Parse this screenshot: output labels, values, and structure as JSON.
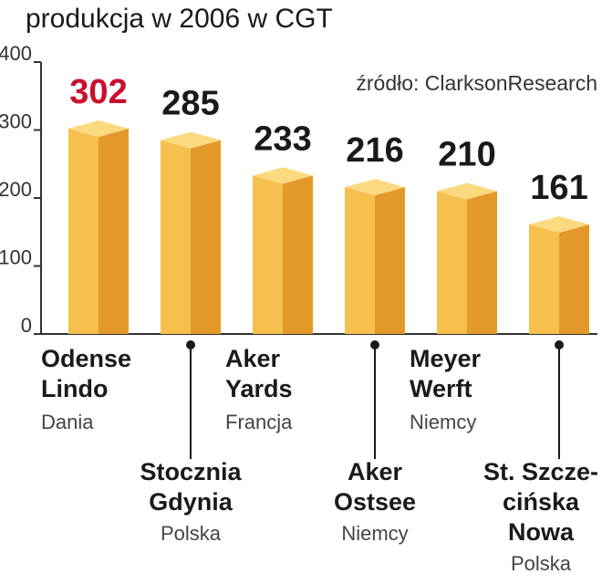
{
  "chart_data": {
    "type": "bar3d",
    "title": "produkcja w 2006 w CGT",
    "source": "źródło: ClarksonResearch",
    "categories": [
      [
        "Odense",
        "Lindo"
      ],
      [
        "Stocznia",
        "Gdynia"
      ],
      [
        "Aker",
        "Yards"
      ],
      [
        "Aker",
        "Ostsee"
      ],
      [
        "Meyer",
        "Werft"
      ],
      [
        "St. Szcze-",
        "cińska",
        "Nowa"
      ]
    ],
    "countries": [
      "Dania",
      "Polska",
      "Francja",
      "Niemcy",
      "Niemcy",
      "Polska"
    ],
    "values": [
      302,
      285,
      233,
      216,
      210,
      161
    ],
    "value_label_colors": [
      "#c8102e",
      "#1a1a1a",
      "#1a1a1a",
      "#1a1a1a",
      "#1a1a1a",
      "#1a1a1a"
    ],
    "colors": {
      "front": "#f6c04f",
      "side": "#e39a2a",
      "top": "#fbd97e"
    },
    "ylim": [
      0,
      400
    ],
    "yticks": [
      0,
      100,
      200,
      300,
      400
    ]
  }
}
